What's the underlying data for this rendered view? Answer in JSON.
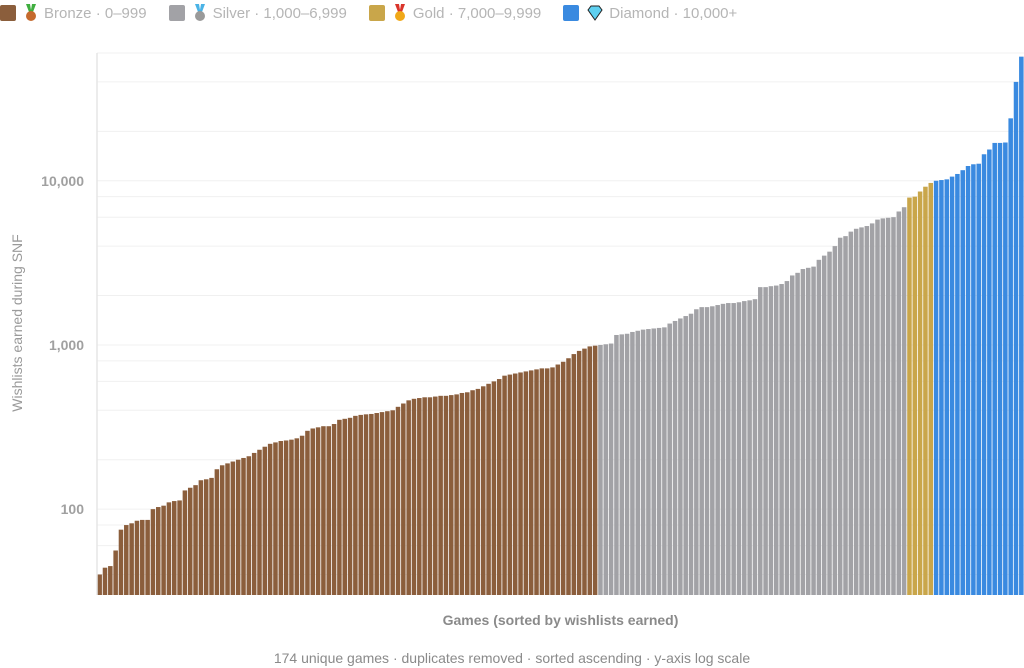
{
  "legend": [
    {
      "label": "Bronze · 0–999",
      "color": "#8B5E3C",
      "icon": "bronze-medal-icon"
    },
    {
      "label": "Silver · 1,000–6,999",
      "color": "#A2A2A6",
      "icon": "silver-medal-icon"
    },
    {
      "label": "Gold · 7,000–9,999",
      "color": "#C9A64A",
      "icon": "gold-medal-icon"
    },
    {
      "label": "Diamond · 10,000+",
      "color": "#3A8AE0",
      "icon": "diamond-icon"
    }
  ],
  "footer": "174 unique games · duplicates removed · sorted ascending · y-axis log scale",
  "chart_data": {
    "type": "bar",
    "title": "",
    "xlabel": "Games (sorted by wishlists earned)",
    "ylabel": "Wishlists earned during SNF",
    "yscale": "log",
    "ylim": [
      30,
      60000
    ],
    "yticks": [
      100,
      1000,
      10000
    ],
    "ytick_labels": [
      "100",
      "1,000",
      "10,000"
    ],
    "grid": true,
    "legend_position": "top-left",
    "series": [
      {
        "name": "Bronze",
        "color": "#8B5E3C",
        "values": [
          40,
          44,
          45,
          56,
          75,
          80,
          82,
          85,
          86,
          86,
          100,
          103,
          105,
          110,
          112,
          113,
          130,
          135,
          140,
          150,
          152,
          155,
          175,
          185,
          190,
          195,
          200,
          205,
          210,
          220,
          230,
          240,
          250,
          255,
          260,
          262,
          265,
          270,
          280,
          300,
          310,
          315,
          320,
          320,
          330,
          350,
          355,
          360,
          370,
          375,
          378,
          380,
          385,
          390,
          395,
          400,
          420,
          440,
          460,
          470,
          475,
          480,
          480,
          485,
          490,
          490,
          495,
          500,
          510,
          515,
          530,
          540,
          560,
          580,
          600,
          620,
          650,
          660,
          670,
          680,
          690,
          700,
          710,
          720,
          720,
          730,
          760,
          790,
          830,
          880,
          920,
          950,
          980,
          990
        ]
      },
      {
        "name": "Silver",
        "color": "#A2A2A6",
        "values": [
          1000,
          1010,
          1020,
          1150,
          1160,
          1170,
          1200,
          1220,
          1240,
          1250,
          1260,
          1270,
          1280,
          1350,
          1400,
          1450,
          1500,
          1550,
          1650,
          1700,
          1700,
          1720,
          1750,
          1780,
          1800,
          1800,
          1820,
          1850,
          1870,
          1900,
          2250,
          2250,
          2280,
          2300,
          2350,
          2450,
          2650,
          2750,
          2900,
          2950,
          3000,
          3300,
          3500,
          3700,
          4000,
          4500,
          4600,
          4900,
          5100,
          5200,
          5300,
          5500,
          5800,
          5900,
          5950,
          6000,
          6500,
          6900
        ]
      },
      {
        "name": "Gold",
        "color": "#C9A64A",
        "values": [
          7900,
          8000,
          8600,
          9200,
          9700
        ]
      },
      {
        "name": "Diamond",
        "color": "#3A8AE0",
        "values": [
          10000,
          10100,
          10200,
          10600,
          11000,
          11600,
          12300,
          12600,
          12700,
          14500,
          15500,
          17000,
          17000,
          17100,
          24000,
          40000,
          57000
        ]
      }
    ]
  }
}
